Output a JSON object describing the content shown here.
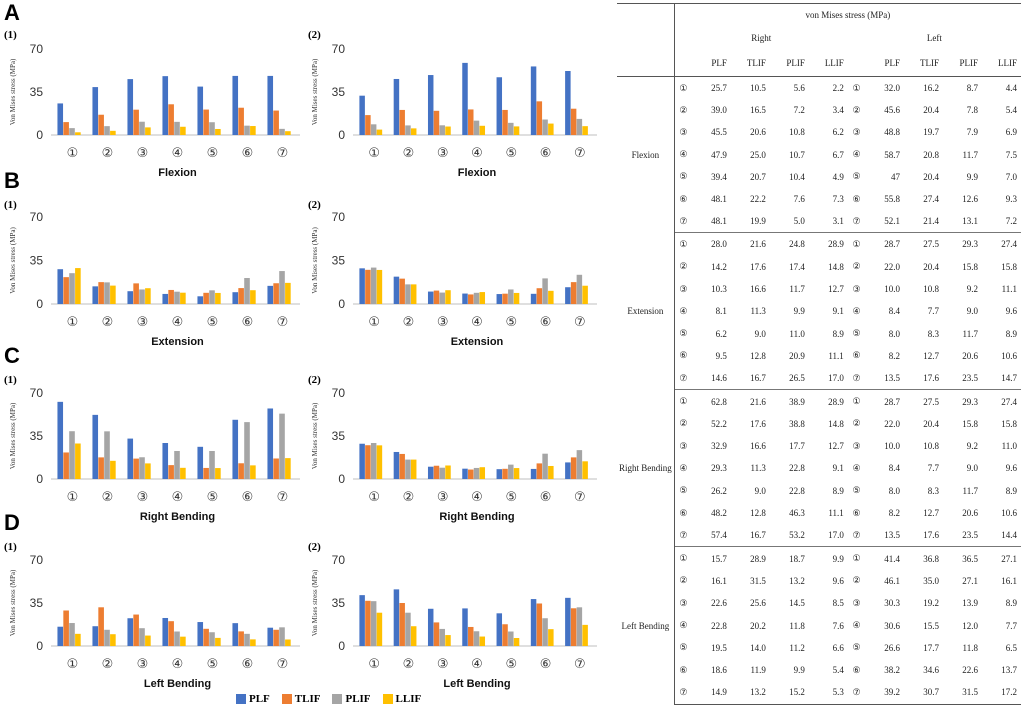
{
  "legend": [
    {
      "name": "PLF",
      "color": "#4472C4"
    },
    {
      "name": "TLIF",
      "color": "#ED7D31"
    },
    {
      "name": "PLIF",
      "color": "#A5A5A5"
    },
    {
      "name": "LLIF",
      "color": "#FFC000"
    }
  ],
  "panel_letters": [
    "A",
    "B",
    "C",
    "D"
  ],
  "chart_data": [
    {
      "panel": "A",
      "sub": "(1)",
      "type": "bar",
      "xlabel": "Flexion",
      "ylabel": "Von Mises stress (MPa)",
      "ylim": [
        0,
        70
      ],
      "yticks": [
        0,
        35,
        70
      ],
      "categories": [
        "①",
        "②",
        "③",
        "④",
        "⑤",
        "⑥",
        "⑦"
      ],
      "series": [
        {
          "name": "PLF",
          "values": [
            25.7,
            39.0,
            45.5,
            47.9,
            39.4,
            48.1,
            48.1
          ]
        },
        {
          "name": "TLIF",
          "values": [
            10.5,
            16.5,
            20.6,
            25.0,
            20.7,
            22.2,
            19.9
          ]
        },
        {
          "name": "PLIF",
          "values": [
            5.6,
            7.2,
            10.8,
            10.7,
            10.4,
            7.6,
            5.0
          ]
        },
        {
          "name": "LLIF",
          "values": [
            2.2,
            3.4,
            6.2,
            6.7,
            4.9,
            7.3,
            3.1
          ]
        }
      ]
    },
    {
      "panel": "A",
      "sub": "(2)",
      "type": "bar",
      "xlabel": "Flexion",
      "ylabel": "Von Mises stress (MPa)",
      "ylim": [
        0,
        70
      ],
      "yticks": [
        0,
        35,
        70
      ],
      "categories": [
        "①",
        "②",
        "③",
        "④",
        "⑤",
        "⑥",
        "⑦"
      ],
      "series": [
        {
          "name": "PLF",
          "values": [
            32.0,
            45.6,
            48.8,
            58.7,
            47,
            55.8,
            52.1
          ]
        },
        {
          "name": "TLIF",
          "values": [
            16.2,
            20.4,
            19.7,
            20.8,
            20.4,
            27.4,
            21.4
          ]
        },
        {
          "name": "PLIF",
          "values": [
            8.7,
            7.8,
            7.9,
            11.7,
            9.9,
            12.6,
            13.1
          ]
        },
        {
          "name": "LLIF",
          "values": [
            4.4,
            5.4,
            6.9,
            7.5,
            7.0,
            9.3,
            7.2
          ]
        }
      ]
    },
    {
      "panel": "B",
      "sub": "(1)",
      "type": "bar",
      "xlabel": "Extension",
      "ylabel": "Von Mises stress (MPa)",
      "ylim": [
        0,
        70
      ],
      "yticks": [
        0,
        35,
        70
      ],
      "categories": [
        "①",
        "②",
        "③",
        "④",
        "⑤",
        "⑥",
        "⑦"
      ],
      "series": [
        {
          "name": "PLF",
          "values": [
            28.0,
            14.2,
            10.3,
            8.1,
            6.2,
            9.5,
            14.6
          ]
        },
        {
          "name": "TLIF",
          "values": [
            21.6,
            17.6,
            16.6,
            11.3,
            9.0,
            12.8,
            16.7
          ]
        },
        {
          "name": "PLIF",
          "values": [
            24.8,
            17.4,
            11.7,
            9.9,
            11.0,
            20.9,
            26.5
          ]
        },
        {
          "name": "LLIF",
          "values": [
            28.9,
            14.8,
            12.7,
            9.1,
            8.9,
            11.1,
            17.0
          ]
        }
      ]
    },
    {
      "panel": "B",
      "sub": "(2)",
      "type": "bar",
      "xlabel": "Extension",
      "ylabel": "Von Mises stress (MPa)",
      "ylim": [
        0,
        70
      ],
      "yticks": [
        0,
        35,
        70
      ],
      "categories": [
        "①",
        "②",
        "③",
        "④",
        "⑤",
        "⑥",
        "⑦"
      ],
      "series": [
        {
          "name": "PLF",
          "values": [
            28.7,
            22.0,
            10.0,
            8.4,
            8.0,
            8.2,
            13.5
          ]
        },
        {
          "name": "TLIF",
          "values": [
            27.5,
            20.4,
            10.8,
            7.7,
            8.3,
            12.7,
            17.6
          ]
        },
        {
          "name": "PLIF",
          "values": [
            29.3,
            15.8,
            9.2,
            9.0,
            11.7,
            20.6,
            23.5
          ]
        },
        {
          "name": "LLIF",
          "values": [
            27.4,
            15.8,
            11.1,
            9.6,
            8.9,
            10.6,
            14.7
          ]
        }
      ]
    },
    {
      "panel": "C",
      "sub": "(1)",
      "type": "bar",
      "xlabel": "Right Bending",
      "ylabel": "Von Mises stress (MPa)",
      "ylim": [
        0,
        70
      ],
      "yticks": [
        0,
        35,
        70
      ],
      "categories": [
        "①",
        "②",
        "③",
        "④",
        "⑤",
        "⑥",
        "⑦"
      ],
      "series": [
        {
          "name": "PLF",
          "values": [
            62.8,
            52.2,
            32.9,
            29.3,
            26.2,
            48.2,
            57.4
          ]
        },
        {
          "name": "TLIF",
          "values": [
            21.6,
            17.6,
            16.6,
            11.3,
            9.0,
            12.8,
            16.7
          ]
        },
        {
          "name": "PLIF",
          "values": [
            38.9,
            38.8,
            17.7,
            22.8,
            22.8,
            46.3,
            53.2
          ]
        },
        {
          "name": "LLIF",
          "values": [
            28.9,
            14.8,
            12.7,
            9.1,
            8.9,
            11.1,
            17.0
          ]
        }
      ]
    },
    {
      "panel": "C",
      "sub": "(2)",
      "type": "bar",
      "xlabel": "Right Bending",
      "ylabel": "Von Mises stress (MPa)",
      "ylim": [
        0,
        70
      ],
      "yticks": [
        0,
        35,
        70
      ],
      "categories": [
        "①",
        "②",
        "③",
        "④",
        "⑤",
        "⑥",
        "⑦"
      ],
      "series": [
        {
          "name": "PLF",
          "values": [
            28.7,
            22.0,
            10.0,
            8.4,
            8.0,
            8.2,
            13.5
          ]
        },
        {
          "name": "TLIF",
          "values": [
            27.5,
            20.4,
            10.8,
            7.7,
            8.3,
            12.7,
            17.6
          ]
        },
        {
          "name": "PLIF",
          "values": [
            29.3,
            15.8,
            9.2,
            9.0,
            11.7,
            20.6,
            23.5
          ]
        },
        {
          "name": "LLIF",
          "values": [
            27.4,
            15.8,
            11.0,
            9.6,
            8.9,
            10.6,
            14.4
          ]
        }
      ]
    },
    {
      "panel": "D",
      "sub": "(1)",
      "type": "bar",
      "xlabel": "Left Bending",
      "ylabel": "Von Mises stress (MPa)",
      "ylim": [
        0,
        70
      ],
      "yticks": [
        0,
        35,
        70
      ],
      "categories": [
        "①",
        "②",
        "③",
        "④",
        "⑤",
        "⑥",
        "⑦"
      ],
      "series": [
        {
          "name": "PLF",
          "values": [
            15.7,
            16.1,
            22.6,
            22.8,
            19.5,
            18.6,
            14.9
          ]
        },
        {
          "name": "TLIF",
          "values": [
            28.9,
            31.5,
            25.6,
            20.2,
            14.0,
            11.9,
            13.2
          ]
        },
        {
          "name": "PLIF",
          "values": [
            18.7,
            13.2,
            14.5,
            11.8,
            11.2,
            9.9,
            15.2
          ]
        },
        {
          "name": "LLIF",
          "values": [
            9.9,
            9.6,
            8.5,
            7.6,
            6.6,
            5.4,
            5.3
          ]
        }
      ]
    },
    {
      "panel": "D",
      "sub": "(2)",
      "type": "bar",
      "xlabel": "Left Bending",
      "ylabel": "Von Mises stress (MPa)",
      "ylim": [
        0,
        70
      ],
      "yticks": [
        0,
        35,
        70
      ],
      "categories": [
        "①",
        "②",
        "③",
        "④",
        "⑤",
        "⑥",
        "⑦"
      ],
      "series": [
        {
          "name": "PLF",
          "values": [
            41.4,
            46.1,
            30.3,
            30.6,
            26.6,
            38.2,
            39.2
          ]
        },
        {
          "name": "TLIF",
          "values": [
            36.8,
            35.0,
            19.2,
            15.5,
            17.7,
            34.6,
            30.7
          ]
        },
        {
          "name": "PLIF",
          "values": [
            36.5,
            27.1,
            13.9,
            12.0,
            11.8,
            22.6,
            31.5
          ]
        },
        {
          "name": "LLIF",
          "values": [
            27.1,
            16.1,
            8.9,
            7.7,
            6.5,
            13.7,
            17.2
          ]
        }
      ]
    }
  ],
  "table": {
    "title": "von Mises stress (MPa)",
    "right_label": "Right",
    "left_label": "Left",
    "columns": [
      "PLF",
      "TLIF",
      "PLIF",
      "LLIF"
    ],
    "groups": [
      {
        "name": "Flexion",
        "rows": [
          {
            "idx": "①",
            "right": [
              "25.7",
              "10.5",
              "5.6",
              "2.2"
            ],
            "lidx": "①",
            "left": [
              "32.0",
              "16.2",
              "8.7",
              "4.4"
            ]
          },
          {
            "idx": "②",
            "right": [
              "39.0",
              "16.5",
              "7.2",
              "3.4"
            ],
            "lidx": "②",
            "left": [
              "45.6",
              "20.4",
              "7.8",
              "5.4"
            ]
          },
          {
            "idx": "③",
            "right": [
              "45.5",
              "20.6",
              "10.8",
              "6.2"
            ],
            "lidx": "③",
            "left": [
              "48.8",
              "19.7",
              "7.9",
              "6.9"
            ]
          },
          {
            "idx": "④",
            "right": [
              "47.9",
              "25.0",
              "10.7",
              "6.7"
            ],
            "lidx": "④",
            "left": [
              "58.7",
              "20.8",
              "11.7",
              "7.5"
            ]
          },
          {
            "idx": "⑤",
            "right": [
              "39.4",
              "20.7",
              "10.4",
              "4.9"
            ],
            "lidx": "⑤",
            "left": [
              "47",
              "20.4",
              "9.9",
              "7.0"
            ]
          },
          {
            "idx": "⑥",
            "right": [
              "48.1",
              "22.2",
              "7.6",
              "7.3"
            ],
            "lidx": "⑥",
            "left": [
              "55.8",
              "27.4",
              "12.6",
              "9.3"
            ]
          },
          {
            "idx": "⑦",
            "right": [
              "48.1",
              "19.9",
              "5.0",
              "3.1"
            ],
            "lidx": "⑦",
            "left": [
              "52.1",
              "21.4",
              "13.1",
              "7.2"
            ]
          }
        ]
      },
      {
        "name": "Extension",
        "rows": [
          {
            "idx": "①",
            "right": [
              "28.0",
              "21.6",
              "24.8",
              "28.9"
            ],
            "lidx": "①",
            "left": [
              "28.7",
              "27.5",
              "29.3",
              "27.4"
            ]
          },
          {
            "idx": "②",
            "right": [
              "14.2",
              "17.6",
              "17.4",
              "14.8"
            ],
            "lidx": "②",
            "left": [
              "22.0",
              "20.4",
              "15.8",
              "15.8"
            ]
          },
          {
            "idx": "③",
            "right": [
              "10.3",
              "16.6",
              "11.7",
              "12.7"
            ],
            "lidx": "③",
            "left": [
              "10.0",
              "10.8",
              "9.2",
              "11.1"
            ]
          },
          {
            "idx": "④",
            "right": [
              "8.1",
              "11.3",
              "9.9",
              "9.1"
            ],
            "lidx": "④",
            "left": [
              "8.4",
              "7.7",
              "9.0",
              "9.6"
            ]
          },
          {
            "idx": "⑤",
            "right": [
              "6.2",
              "9.0",
              "11.0",
              "8.9"
            ],
            "lidx": "⑤",
            "left": [
              "8.0",
              "8.3",
              "11.7",
              "8.9"
            ]
          },
          {
            "idx": "⑥",
            "right": [
              "9.5",
              "12.8",
              "20.9",
              "11.1"
            ],
            "lidx": "⑥",
            "left": [
              "8.2",
              "12.7",
              "20.6",
              "10.6"
            ]
          },
          {
            "idx": "⑦",
            "right": [
              "14.6",
              "16.7",
              "26.5",
              "17.0"
            ],
            "lidx": "⑦",
            "left": [
              "13.5",
              "17.6",
              "23.5",
              "14.7"
            ]
          }
        ]
      },
      {
        "name": "Right Bending",
        "rows": [
          {
            "idx": "①",
            "right": [
              "62.8",
              "21.6",
              "38.9",
              "28.9"
            ],
            "lidx": "①",
            "left": [
              "28.7",
              "27.5",
              "29.3",
              "27.4"
            ]
          },
          {
            "idx": "②",
            "right": [
              "52.2",
              "17.6",
              "38.8",
              "14.8"
            ],
            "lidx": "②",
            "left": [
              "22.0",
              "20.4",
              "15.8",
              "15.8"
            ]
          },
          {
            "idx": "③",
            "right": [
              "32.9",
              "16.6",
              "17.7",
              "12.7"
            ],
            "lidx": "③",
            "left": [
              "10.0",
              "10.8",
              "9.2",
              "11.0"
            ]
          },
          {
            "idx": "④",
            "right": [
              "29.3",
              "11.3",
              "22.8",
              "9.1"
            ],
            "lidx": "④",
            "left": [
              "8.4",
              "7.7",
              "9.0",
              "9.6"
            ]
          },
          {
            "idx": "⑤",
            "right": [
              "26.2",
              "9.0",
              "22.8",
              "8.9"
            ],
            "lidx": "⑤",
            "left": [
              "8.0",
              "8.3",
              "11.7",
              "8.9"
            ]
          },
          {
            "idx": "⑥",
            "right": [
              "48.2",
              "12.8",
              "46.3",
              "11.1"
            ],
            "lidx": "⑥",
            "left": [
              "8.2",
              "12.7",
              "20.6",
              "10.6"
            ]
          },
          {
            "idx": "⑦",
            "right": [
              "57.4",
              "16.7",
              "53.2",
              "17.0"
            ],
            "lidx": "⑦",
            "left": [
              "13.5",
              "17.6",
              "23.5",
              "14.4"
            ]
          }
        ]
      },
      {
        "name": "Left Bending",
        "rows": [
          {
            "idx": "①",
            "right": [
              "15.7",
              "28.9",
              "18.7",
              "9.9"
            ],
            "lidx": "①",
            "left": [
              "41.4",
              "36.8",
              "36.5",
              "27.1"
            ]
          },
          {
            "idx": "②",
            "right": [
              "16.1",
              "31.5",
              "13.2",
              "9.6"
            ],
            "lidx": "②",
            "left": [
              "46.1",
              "35.0",
              "27.1",
              "16.1"
            ]
          },
          {
            "idx": "③",
            "right": [
              "22.6",
              "25.6",
              "14.5",
              "8.5"
            ],
            "lidx": "③",
            "left": [
              "30.3",
              "19.2",
              "13.9",
              "8.9"
            ]
          },
          {
            "idx": "④",
            "right": [
              "22.8",
              "20.2",
              "11.8",
              "7.6"
            ],
            "lidx": "④",
            "left": [
              "30.6",
              "15.5",
              "12.0",
              "7.7"
            ]
          },
          {
            "idx": "⑤",
            "right": [
              "19.5",
              "14.0",
              "11.2",
              "6.6"
            ],
            "lidx": "⑤",
            "left": [
              "26.6",
              "17.7",
              "11.8",
              "6.5"
            ]
          },
          {
            "idx": "⑥",
            "right": [
              "18.6",
              "11.9",
              "9.9",
              "5.4"
            ],
            "lidx": "⑥",
            "left": [
              "38.2",
              "34.6",
              "22.6",
              "13.7"
            ]
          },
          {
            "idx": "⑦",
            "right": [
              "14.9",
              "13.2",
              "15.2",
              "5.3"
            ],
            "lidx": "⑦",
            "left": [
              "39.2",
              "30.7",
              "31.5",
              "17.2"
            ]
          }
        ]
      }
    ]
  }
}
